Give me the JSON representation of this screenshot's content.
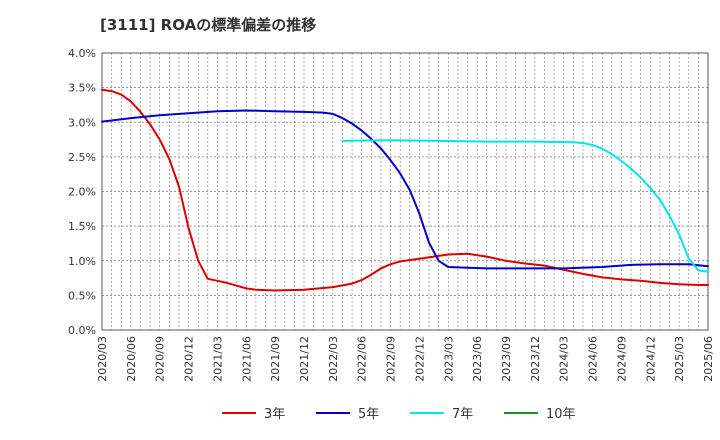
{
  "chart_data": {
    "type": "line",
    "title": "[3111]  ROAの標準偏差の推移",
    "xlabel": "",
    "ylabel": "",
    "ylim": [
      0,
      4.0
    ],
    "y_ticks": [
      "0.0%",
      "0.5%",
      "1.0%",
      "1.5%",
      "2.0%",
      "2.5%",
      "3.0%",
      "3.5%",
      "4.0%"
    ],
    "y_tick_values": [
      0,
      0.5,
      1.0,
      1.5,
      2.0,
      2.5,
      3.0,
      3.5,
      4.0
    ],
    "x_ticks": [
      "2020/03",
      "2020/06",
      "2020/09",
      "2020/12",
      "2021/03",
      "2021/06",
      "2021/09",
      "2021/12",
      "2022/03",
      "2022/06",
      "2022/09",
      "2022/12",
      "2023/03",
      "2023/06",
      "2023/09",
      "2023/12",
      "2024/03",
      "2024/06",
      "2024/09",
      "2024/12",
      "2025/03",
      "2025/06"
    ],
    "x_range_months": [
      0,
      63
    ],
    "grid": true,
    "legend_position": "bottom",
    "series": [
      {
        "name": "3年",
        "color": "#dd0000",
        "points": [
          [
            0,
            3.47
          ],
          [
            1,
            3.45
          ],
          [
            2,
            3.4
          ],
          [
            3,
            3.3
          ],
          [
            4,
            3.15
          ],
          [
            5,
            2.97
          ],
          [
            6,
            2.75
          ],
          [
            7,
            2.47
          ],
          [
            8,
            2.07
          ],
          [
            9,
            1.47
          ],
          [
            10,
            1.0
          ],
          [
            11,
            0.74
          ],
          [
            12,
            0.71
          ],
          [
            13,
            0.68
          ],
          [
            14,
            0.64
          ],
          [
            15,
            0.6
          ],
          [
            16,
            0.58
          ],
          [
            18,
            0.57
          ],
          [
            21,
            0.58
          ],
          [
            24,
            0.62
          ],
          [
            26,
            0.67
          ],
          [
            27,
            0.72
          ],
          [
            28,
            0.8
          ],
          [
            29,
            0.89
          ],
          [
            30,
            0.95
          ],
          [
            31,
            0.99
          ],
          [
            33,
            1.03
          ],
          [
            35,
            1.07
          ],
          [
            36,
            1.09
          ],
          [
            38,
            1.1
          ],
          [
            40,
            1.06
          ],
          [
            42,
            1.0
          ],
          [
            44,
            0.96
          ],
          [
            46,
            0.93
          ],
          [
            48,
            0.87
          ],
          [
            50,
            0.81
          ],
          [
            52,
            0.76
          ],
          [
            54,
            0.73
          ],
          [
            56,
            0.71
          ],
          [
            58,
            0.68
          ],
          [
            60,
            0.66
          ],
          [
            62,
            0.65
          ],
          [
            63,
            0.65
          ]
        ]
      },
      {
        "name": "5年",
        "color": "#0000cc",
        "points": [
          [
            0,
            3.01
          ],
          [
            3,
            3.06
          ],
          [
            6,
            3.1
          ],
          [
            9,
            3.13
          ],
          [
            12,
            3.16
          ],
          [
            15,
            3.17
          ],
          [
            18,
            3.16
          ],
          [
            21,
            3.15
          ],
          [
            23,
            3.14
          ],
          [
            24,
            3.12
          ],
          [
            25,
            3.06
          ],
          [
            26,
            2.98
          ],
          [
            27,
            2.88
          ],
          [
            28,
            2.76
          ],
          [
            29,
            2.62
          ],
          [
            30,
            2.45
          ],
          [
            31,
            2.26
          ],
          [
            32,
            2.02
          ],
          [
            33,
            1.68
          ],
          [
            34,
            1.26
          ],
          [
            35,
            1.0
          ],
          [
            36,
            0.91
          ],
          [
            38,
            0.9
          ],
          [
            40,
            0.89
          ],
          [
            44,
            0.89
          ],
          [
            48,
            0.89
          ],
          [
            52,
            0.91
          ],
          [
            55,
            0.94
          ],
          [
            58,
            0.95
          ],
          [
            61,
            0.95
          ],
          [
            63,
            0.92
          ]
        ]
      },
      {
        "name": "7年",
        "color": "#00e5ee",
        "points": [
          [
            25,
            2.73
          ],
          [
            30,
            2.74
          ],
          [
            35,
            2.73
          ],
          [
            40,
            2.72
          ],
          [
            45,
            2.72
          ],
          [
            49,
            2.71
          ],
          [
            50,
            2.7
          ],
          [
            51,
            2.67
          ],
          [
            52,
            2.62
          ],
          [
            53,
            2.54
          ],
          [
            54,
            2.44
          ],
          [
            55,
            2.33
          ],
          [
            56,
            2.2
          ],
          [
            57,
            2.05
          ],
          [
            58,
            1.88
          ],
          [
            59,
            1.65
          ],
          [
            60,
            1.38
          ],
          [
            61,
            1.03
          ],
          [
            62,
            0.86
          ],
          [
            63,
            0.84
          ]
        ]
      },
      {
        "name": "10年",
        "color": "#228b22",
        "points": []
      }
    ]
  }
}
